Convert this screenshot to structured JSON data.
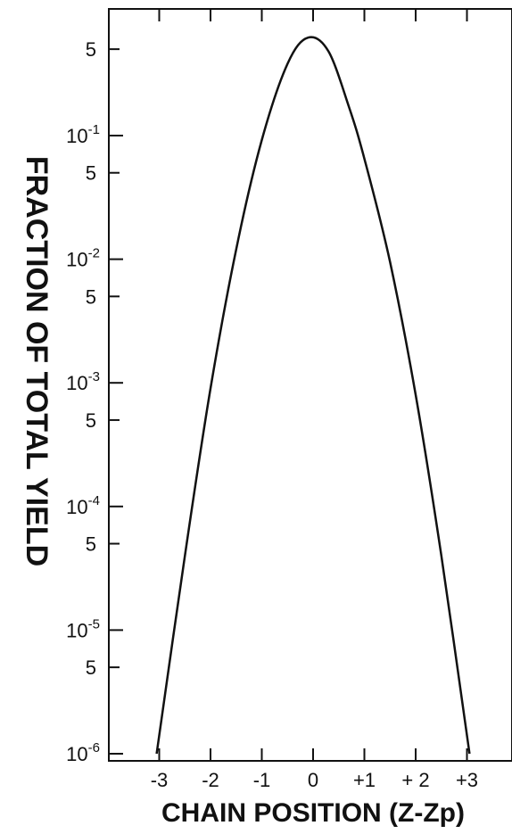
{
  "chart_data": {
    "type": "line",
    "title": "",
    "xlabel": "CHAIN POSITION (Z-Zp)",
    "ylabel": "FRACTION OF TOTAL YIELD",
    "yscale": "log",
    "xlim": [
      -3.6,
      3.6
    ],
    "ylim": [
      1e-06,
      1
    ],
    "x_ticks": [
      {
        "value": -3,
        "label": "-3"
      },
      {
        "value": -2,
        "label": "-2"
      },
      {
        "value": -1,
        "label": "-1"
      },
      {
        "value": 0,
        "label": "0"
      },
      {
        "value": 1,
        "label": "+1"
      },
      {
        "value": 2,
        "label": "+ 2"
      },
      {
        "value": 3,
        "label": "+3"
      }
    ],
    "y_ticks": [
      {
        "value": 0.5,
        "base": "5",
        "exp": ""
      },
      {
        "value": 0.1,
        "base": "10",
        "exp": "-1"
      },
      {
        "value": 0.05,
        "base": "5",
        "exp": ""
      },
      {
        "value": 0.01,
        "base": "10",
        "exp": "-2"
      },
      {
        "value": 0.005,
        "base": "5",
        "exp": ""
      },
      {
        "value": 0.001,
        "base": "10",
        "exp": "-3"
      },
      {
        "value": 0.0005,
        "base": "5",
        "exp": ""
      },
      {
        "value": 0.0001,
        "base": "10",
        "exp": "-4"
      },
      {
        "value": 5e-05,
        "base": "5",
        "exp": ""
      },
      {
        "value": 1e-05,
        "base": "10",
        "exp": "-5"
      },
      {
        "value": 5e-06,
        "base": "5",
        "exp": ""
      },
      {
        "value": 1e-06,
        "base": "10",
        "exp": "-6"
      }
    ],
    "series": [
      {
        "x": [
          -3.05,
          -2.5,
          -2.0,
          -1.5,
          -1.0,
          -0.5,
          -0.1,
          0.3,
          0.7,
          1.0,
          1.5,
          2.0,
          2.5,
          3.05
        ],
        "y": [
          1e-06,
          4e-05,
          0.0009,
          0.012,
          0.092,
          0.38,
          0.62,
          0.48,
          0.17,
          0.065,
          0.0095,
          0.0008,
          4e-05,
          1e-06
        ]
      }
    ],
    "grid": false
  }
}
